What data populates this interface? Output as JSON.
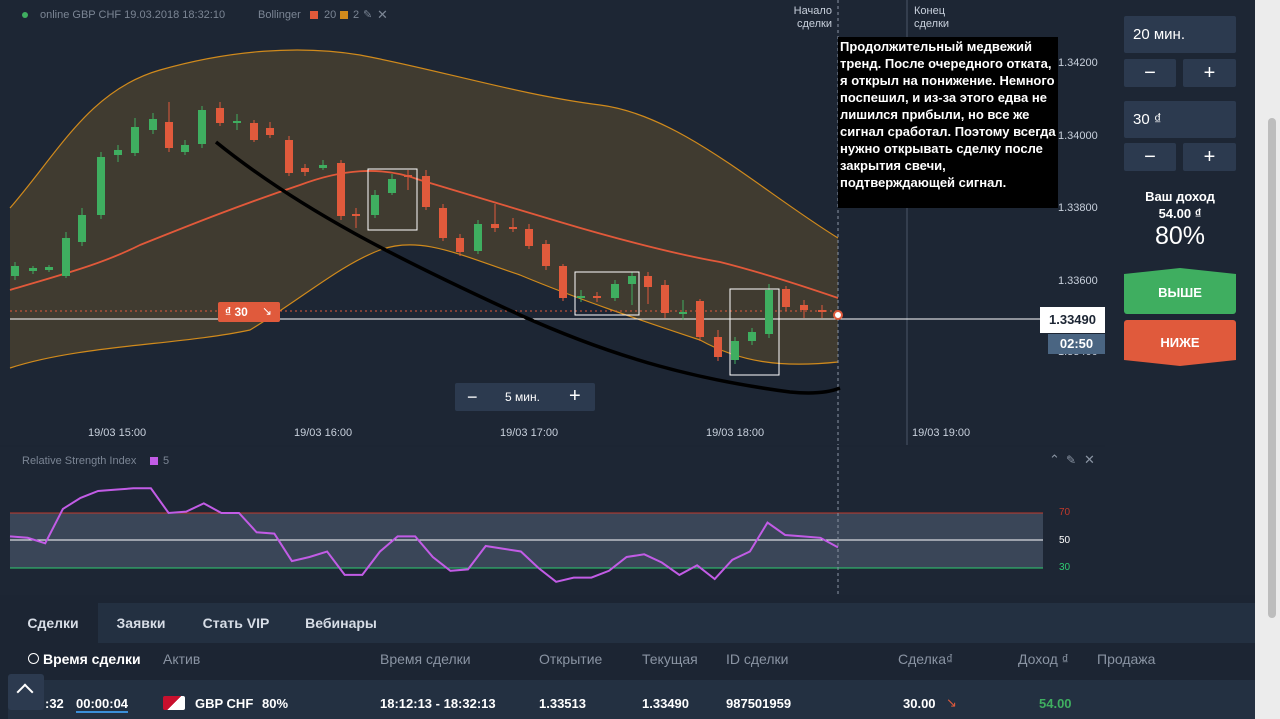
{
  "header": {
    "status": "online GBP CHF 19.03.2018 18:32:10",
    "indicator_name": "Bollinger",
    "period": "20",
    "deviation": "2"
  },
  "markers": {
    "start_label_line1": "Начало",
    "start_label_line2": "сделки",
    "end_label_line1": "Конец",
    "end_label_line2": "сделки"
  },
  "annotation_text": "Продолжительный медвежий тренд. После очередного отката, я открыл на понижение. Немного поспешил, и из-за этого едва не лишился прибыли, но все же сигнал сработал.  Поэтому всегда нужно открывать сделку после закрытия свечи, подтверждающей сигнал.",
  "price_axis": [
    "1.34200",
    "1.34000",
    "1.33800",
    "1.33600",
    "1.33400"
  ],
  "current_price": "1.33490",
  "countdown": "02:50",
  "trade_tag": {
    "amount": "₫ 30"
  },
  "timeframe": {
    "minus": "−",
    "label": "5 мин.",
    "plus": "+"
  },
  "time_axis": [
    "19/03 15:00",
    "19/03 16:00",
    "19/03 17:00",
    "19/03 18:00",
    "19/03 19:00"
  ],
  "rsi": {
    "title": "Relative Strength Index",
    "period": "5",
    "levels": [
      "70",
      "50",
      "30"
    ],
    "values": [
      53,
      52,
      48,
      73,
      81,
      86,
      87,
      88,
      88,
      70,
      71,
      77,
      70,
      70,
      56,
      55,
      35,
      38,
      42,
      25,
      25,
      42,
      53,
      53,
      38,
      28,
      29,
      46,
      44,
      42,
      30,
      20,
      23,
      23,
      28,
      38,
      40,
      34,
      25,
      32,
      22,
      36,
      42,
      63,
      54,
      53,
      52,
      45
    ],
    "color": "#c25ce6"
  },
  "right_panel": {
    "time_value": "20 мин.",
    "amount_value": "30 ₫",
    "minus": "−",
    "plus": "+",
    "payout_label": "Ваш доход",
    "payout_amount": "54.00 ₫",
    "payout_percent": "80%",
    "higher_label": "ВЫШЕ",
    "lower_label": "НИЖЕ"
  },
  "colors": {
    "up": "#3fae60",
    "down": "#e05a3c",
    "bollinger_band": "#d08a1c",
    "middle_line": "#e2593a"
  },
  "bottom": {
    "tabs": [
      "Сделки",
      "Заявки",
      "Стать VIP",
      "Вебинары"
    ],
    "columns": [
      "Время сделки",
      "Актив",
      "Время сделки",
      "Открытие",
      "Текущая",
      "ID сделки",
      "Сделка₫",
      "Доход ₫",
      "Продажа"
    ],
    "row": {
      "time_left_partial": ":32",
      "countdown": "00:00:04",
      "asset": "GBP CHF",
      "percent": "80%",
      "period": "18:12:13 - 18:32:13",
      "open": "1.33513",
      "current": "1.33490",
      "id": "987501959",
      "amount": "30.00",
      "income": "54.00"
    }
  }
}
